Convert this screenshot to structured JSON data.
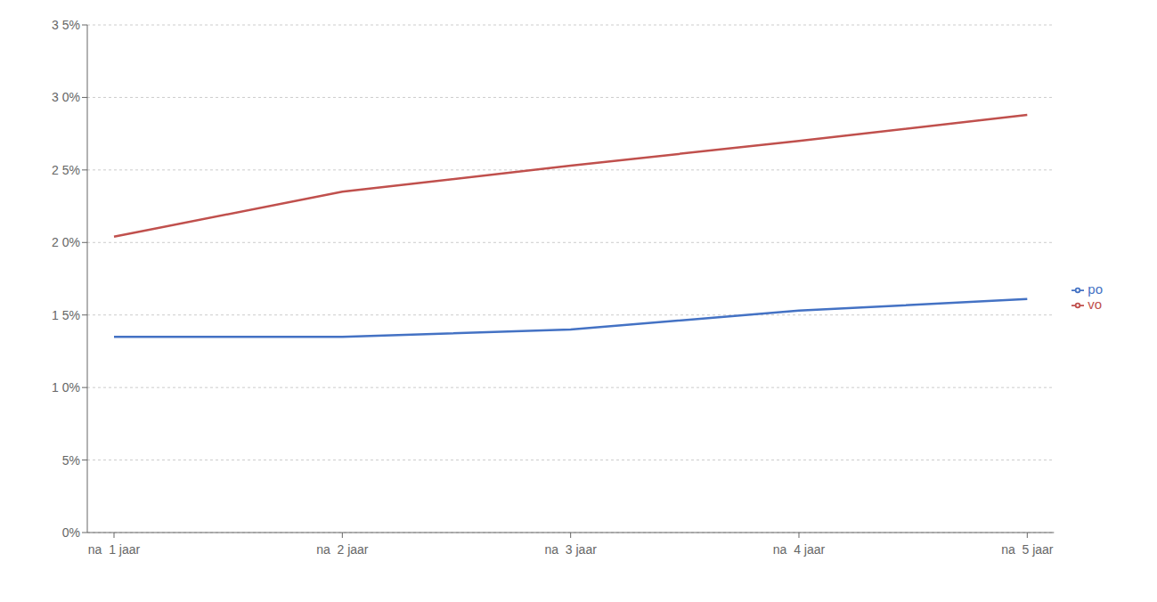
{
  "chart_data": {
    "type": "line",
    "categories": [
      "na  1 jaar",
      "na  2 jaar",
      "na  3 jaar",
      "na  4 jaar",
      "na  5 jaar"
    ],
    "series": [
      {
        "name": "po",
        "color": "#4472C4",
        "values": [
          0.135,
          0.135,
          0.14,
          0.153,
          0.161
        ]
      },
      {
        "name": "vo",
        "color": "#C0504D",
        "values": [
          0.204,
          0.235,
          0.253,
          0.27,
          0.288
        ]
      }
    ],
    "ylim": [
      0,
      0.35
    ],
    "yticks": [
      {
        "value": 0.0,
        "label": "0%"
      },
      {
        "value": 0.05,
        "label": "5%"
      },
      {
        "value": 0.1,
        "label": "1 0%"
      },
      {
        "value": 0.15,
        "label": "1 5%"
      },
      {
        "value": 0.2,
        "label": "2 0%"
      },
      {
        "value": 0.25,
        "label": "2 5%"
      },
      {
        "value": 0.3,
        "label": "3 0%"
      },
      {
        "value": 0.35,
        "label": "3 5%"
      }
    ],
    "grid": true,
    "legend": "right"
  }
}
